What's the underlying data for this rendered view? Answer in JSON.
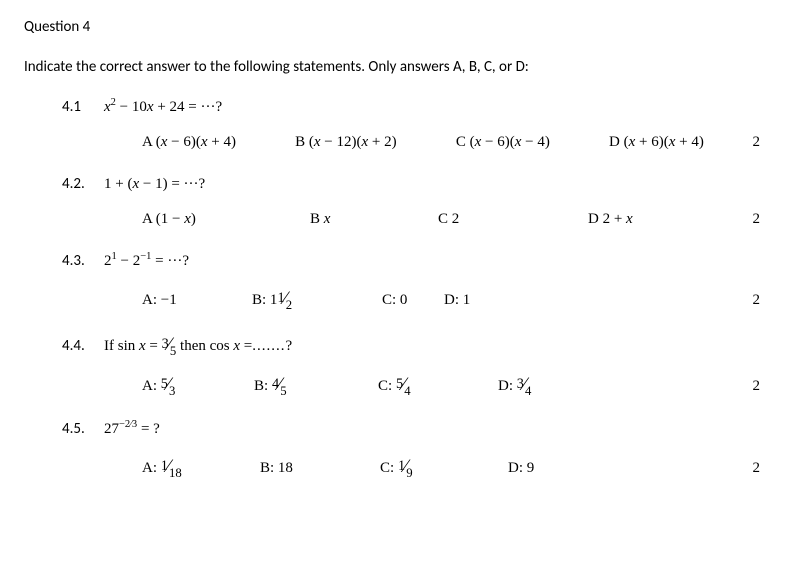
{
  "title": "Question 4",
  "instruction": "Indicate the correct answer to the following statements. Only answers A, B, C, or D:",
  "items": [
    {
      "num": "4.1",
      "eq_html": "<i>x</i><sup>2</sup> − 10<i>x</i> + 24 = ···?",
      "opts": [
        {
          "label": "A",
          "val_html": "(<i>x</i> − 6)(<i>x</i> + 4)",
          "wclass": "w-a41",
          "sep": " "
        },
        {
          "label": "B",
          "val_html": "(<i>x</i> − 12)(<i>x</i> + 2)",
          "wclass": "w-b41",
          "sep": " "
        },
        {
          "label": "C",
          "val_html": "(<i>x</i> − 6)(<i>x</i> − 4)",
          "wclass": "w-c41",
          "sep": " "
        },
        {
          "label": "D",
          "val_html": "(<i>x</i> + 6)(<i>x</i> + 4)",
          "wclass": "w-d41",
          "sep": " "
        }
      ],
      "marks": "2"
    },
    {
      "num": "4.2.",
      "eq_html": "1 + (<i>x</i> − 1) = ···?",
      "opts": [
        {
          "label": "A",
          "val_html": "(1 − <i>x</i>)",
          "wclass": "w-a42",
          "sep": " "
        },
        {
          "label": "B",
          "val_html": "<i>x</i>",
          "wclass": "w-b42",
          "sep": " "
        },
        {
          "label": "C",
          "val_html": "2",
          "wclass": "w-c42",
          "sep": " "
        },
        {
          "label": "D",
          "val_html": "2 + <i>x</i>",
          "wclass": "w-d42",
          "sep": " "
        }
      ],
      "marks": "2"
    },
    {
      "num": "4.3.",
      "eq_html": "2<sup>1</sup> − 2<sup>−1</sup> = ···?",
      "opts": [
        {
          "label": "A:",
          "val_html": "−1",
          "wclass": "w-a43",
          "sep": " "
        },
        {
          "label": "B:",
          "val_html": "<span class='frac'><span class='frac-num'>1</span><span class='frac-slash'>⁄</span><span class='frac-den'>2</span></span>",
          "wclass": "w-b43",
          "sep": " 1"
        },
        {
          "label": "C:",
          "val_html": "0",
          "wclass": "w-c43",
          "sep": " "
        },
        {
          "label": "D:",
          "val_html": "1",
          "wclass": "w-d43",
          "sep": " "
        }
      ],
      "marks": "2"
    },
    {
      "num": "4.4.",
      "eq_html": "If sin <i>x</i> = <span class='frac'><span class='frac-num'>3</span><span class='frac-slash'>⁄</span><span class='frac-den'>5</span></span> then cos <i>x</i> =<span class='dots'>.......</span>?",
      "opts": [
        {
          "label": "A:",
          "val_html": "<span class='frac'><span class='frac-num'>5</span><span class='frac-slash'>⁄</span><span class='frac-den'>3</span></span>",
          "wclass": "w-a44",
          "sep": " "
        },
        {
          "label": "B:",
          "val_html": "<span class='frac'><span class='frac-num'>4</span><span class='frac-slash'>⁄</span><span class='frac-den'>5</span></span>",
          "wclass": "w-b44",
          "sep": " "
        },
        {
          "label": "C:",
          "val_html": "<span class='frac'><span class='frac-num'>5</span><span class='frac-slash'>⁄</span><span class='frac-den'>4</span></span>",
          "wclass": "w-c44",
          "sep": " "
        },
        {
          "label": "D:",
          "val_html": "<span class='frac'><span class='frac-num'>3</span><span class='frac-slash'>⁄</span><span class='frac-den'>4</span></span>",
          "wclass": "w-d44",
          "sep": " "
        }
      ],
      "marks": "2"
    },
    {
      "num": "4.5.",
      "eq_html": "27<sup>−2⁄3</sup> = ?",
      "opts": [
        {
          "label": "A:",
          "val_html": "<span class='frac'><span class='frac-num'>1</span><span class='frac-slash'>⁄</span><span class='frac-den'>18</span></span>",
          "wclass": "w-a45",
          "sep": " "
        },
        {
          "label": "B:",
          "val_html": "18",
          "wclass": "w-b45",
          "sep": " "
        },
        {
          "label": "C:",
          "val_html": "<span class='frac'><span class='frac-num'>1</span><span class='frac-slash'>⁄</span><span class='frac-den'>9</span></span>",
          "wclass": "w-c45",
          "sep": " "
        },
        {
          "label": "D:",
          "val_html": "9",
          "wclass": "w-d45",
          "sep": " "
        }
      ],
      "marks": "2"
    }
  ],
  "colors": {
    "text": "#000000",
    "background": "#ffffff"
  },
  "typography": {
    "body_font": "Calibri",
    "math_font": "Cambria Math",
    "body_size_pt": 11,
    "title_size_pt": 11
  }
}
